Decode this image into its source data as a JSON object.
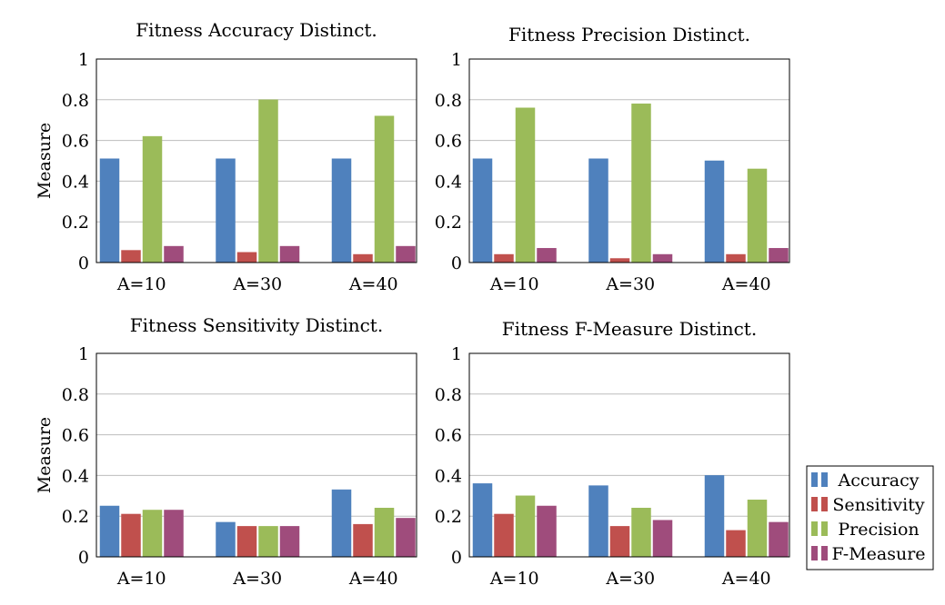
{
  "chart_data": [
    {
      "type": "bar",
      "title": "Fitness Accuracy Distinct.",
      "ylabel": "Measure",
      "categories": [
        "A=10",
        "A=30",
        "A=40"
      ],
      "ylim": [
        0,
        1
      ],
      "yticks": [
        "0",
        "0.2",
        "0.4",
        "0.6",
        "0.8",
        "1"
      ],
      "grid": true,
      "series": [
        {
          "name": "Accuracy",
          "values": [
            0.51,
            0.51,
            0.51
          ]
        },
        {
          "name": "Sensitivity",
          "values": [
            0.06,
            0.05,
            0.04
          ]
        },
        {
          "name": "Precision",
          "values": [
            0.62,
            0.8,
            0.72
          ]
        },
        {
          "name": "F-Measure",
          "values": [
            0.08,
            0.08,
            0.08
          ]
        }
      ]
    },
    {
      "type": "bar",
      "title": "Fitness Precision Distinct.",
      "ylabel": "",
      "categories": [
        "A=10",
        "A=30",
        "A=40"
      ],
      "ylim": [
        0,
        1
      ],
      "yticks": [
        "0",
        "0.2",
        "0.4",
        "0.6",
        "0.8",
        "1"
      ],
      "grid": true,
      "series": [
        {
          "name": "Accuracy",
          "values": [
            0.51,
            0.51,
            0.5
          ]
        },
        {
          "name": "Sensitivity",
          "values": [
            0.04,
            0.02,
            0.04
          ]
        },
        {
          "name": "Precision",
          "values": [
            0.76,
            0.78,
            0.46
          ]
        },
        {
          "name": "F-Measure",
          "values": [
            0.07,
            0.04,
            0.07
          ]
        }
      ]
    },
    {
      "type": "bar",
      "title": "Fitness Sensitivity Distinct.",
      "ylabel": "Measure",
      "categories": [
        "A=10",
        "A=30",
        "A=40"
      ],
      "ylim": [
        0,
        1
      ],
      "yticks": [
        "0",
        "0.2",
        "0.4",
        "0.6",
        "0.8",
        "1"
      ],
      "grid": true,
      "series": [
        {
          "name": "Accuracy",
          "values": [
            0.25,
            0.17,
            0.33
          ]
        },
        {
          "name": "Sensitivity",
          "values": [
            0.21,
            0.15,
            0.16
          ]
        },
        {
          "name": "Precision",
          "values": [
            0.23,
            0.15,
            0.24
          ]
        },
        {
          "name": "F-Measure",
          "values": [
            0.23,
            0.15,
            0.19
          ]
        }
      ]
    },
    {
      "type": "bar",
      "title": "Fitness F-Measure Distinct.",
      "ylabel": "",
      "categories": [
        "A=10",
        "A=30",
        "A=40"
      ],
      "ylim": [
        0,
        1
      ],
      "yticks": [
        "0",
        "0.2",
        "0.4",
        "0.6",
        "0.8",
        "1"
      ],
      "grid": true,
      "series": [
        {
          "name": "Accuracy",
          "values": [
            0.36,
            0.35,
            0.4
          ]
        },
        {
          "name": "Sensitivity",
          "values": [
            0.21,
            0.15,
            0.13
          ]
        },
        {
          "name": "Precision",
          "values": [
            0.3,
            0.24,
            0.28
          ]
        },
        {
          "name": "F-Measure",
          "values": [
            0.25,
            0.18,
            0.17
          ]
        }
      ]
    }
  ],
  "legend": {
    "placement": "bottom-right",
    "items": [
      {
        "name": "Accuracy",
        "color": "#4f81bd"
      },
      {
        "name": "Sensitivity",
        "color": "#c0504d"
      },
      {
        "name": "Precision",
        "color": "#9bbb59"
      },
      {
        "name": "F-Measure",
        "color": "#9f4c7c"
      }
    ]
  }
}
